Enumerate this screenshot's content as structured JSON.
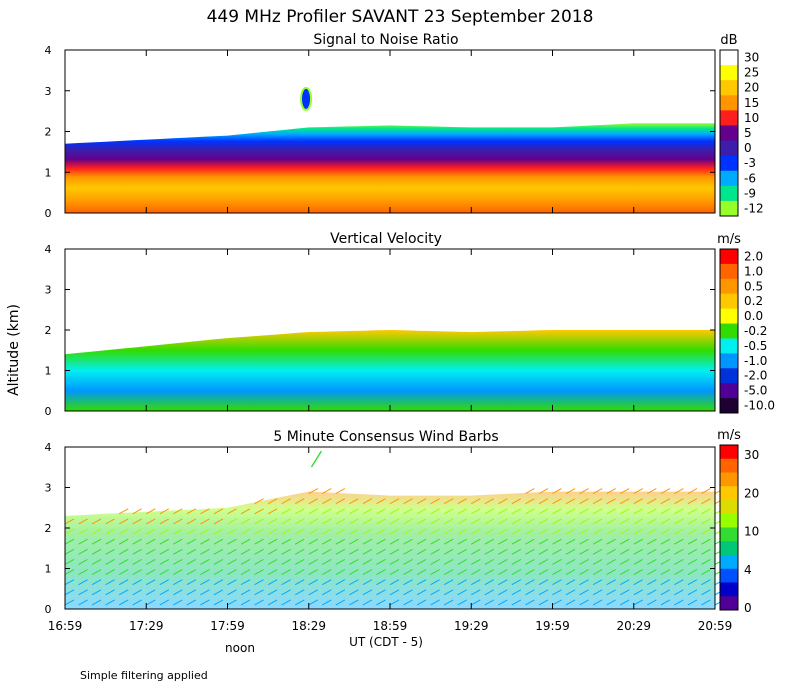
{
  "figure": {
    "title": "449 MHz Profiler SAVANT 23 September 2018",
    "ylabel": "Altitude (km)",
    "xlabel": "UT  (CDT - 5)",
    "noon_label": "noon",
    "note": "Simple filtering applied",
    "x_ticks": [
      "16:59",
      "17:29",
      "17:59",
      "18:29",
      "18:59",
      "19:29",
      "19:59",
      "20:29",
      "20:59"
    ],
    "y_ticks": [
      "0",
      "1",
      "2",
      "3",
      "4"
    ],
    "ylim": [
      0,
      4
    ]
  },
  "chart_data": [
    {
      "type": "heatmap",
      "title": "Signal to Noise Ratio",
      "unit": "dB",
      "ylim": [
        0,
        4
      ],
      "legend_labels": [
        "30",
        "25",
        "20",
        "15",
        "10",
        "5",
        "0",
        "-3",
        "-6",
        "-9",
        "-12"
      ],
      "legend_colors": [
        "#ffffff",
        "#ffff00",
        "#ffc800",
        "#ff9600",
        "#ff1e1e",
        "#64008c",
        "#3c1eaa",
        "#0032ff",
        "#00aaff",
        "#00e68c",
        "#96ff28"
      ],
      "echo_top_km": {
        "times": [
          "16:59",
          "17:29",
          "17:59",
          "18:29",
          "18:59",
          "19:29",
          "19:59",
          "20:29",
          "20:59"
        ],
        "values": [
          1.7,
          1.8,
          1.9,
          2.1,
          2.15,
          2.1,
          2.1,
          2.2,
          2.2
        ]
      },
      "feature": {
        "time": "18:28",
        "altitude_km": 2.8,
        "label": ""
      }
    },
    {
      "type": "heatmap",
      "title": "Vertical Velocity",
      "unit": "m/s",
      "ylim": [
        0,
        4
      ],
      "legend_labels": [
        "2.0",
        "1.0",
        "0.5",
        "0.2",
        "0.0",
        "-0.2",
        "-0.5",
        "-1.0",
        "-2.0",
        "-5.0",
        "-10.0"
      ],
      "legend_colors": [
        "#ff0000",
        "#ff6400",
        "#ff9600",
        "#ffc800",
        "#ffff00",
        "#32dc00",
        "#00f0f0",
        "#0096ff",
        "#0032dc",
        "#500096",
        "#1e0032"
      ],
      "data_top_km": {
        "times": [
          "16:59",
          "17:29",
          "17:59",
          "18:29",
          "18:59",
          "19:29",
          "19:59",
          "20:29",
          "20:59"
        ],
        "values": [
          1.4,
          1.6,
          1.8,
          1.95,
          2.0,
          1.95,
          2.0,
          2.0,
          2.0
        ]
      }
    },
    {
      "type": "scatter",
      "title": "5 Minute Consensus Wind Barbs",
      "unit": "m/s",
      "ylim": [
        0,
        4
      ],
      "legend_labels": [
        "30",
        "20",
        "10",
        "4",
        "0"
      ],
      "legend_colors": [
        "#ff0000",
        "#ff6400",
        "#ff9600",
        "#ffc800",
        "#dcdc00",
        "#96ff00",
        "#32dc32",
        "#00c878",
        "#00aaff",
        "#0050ff",
        "#0000c8",
        "#500096"
      ],
      "top_km": {
        "times": [
          "16:59",
          "17:29",
          "17:59",
          "18:29",
          "18:59",
          "19:29",
          "19:59",
          "20:29",
          "20:59"
        ],
        "values": [
          2.3,
          2.4,
          2.5,
          2.9,
          2.8,
          2.8,
          2.9,
          2.9,
          2.9
        ]
      },
      "isolated_barb": {
        "time": "18:30",
        "altitude_km": 3.9
      }
    }
  ]
}
